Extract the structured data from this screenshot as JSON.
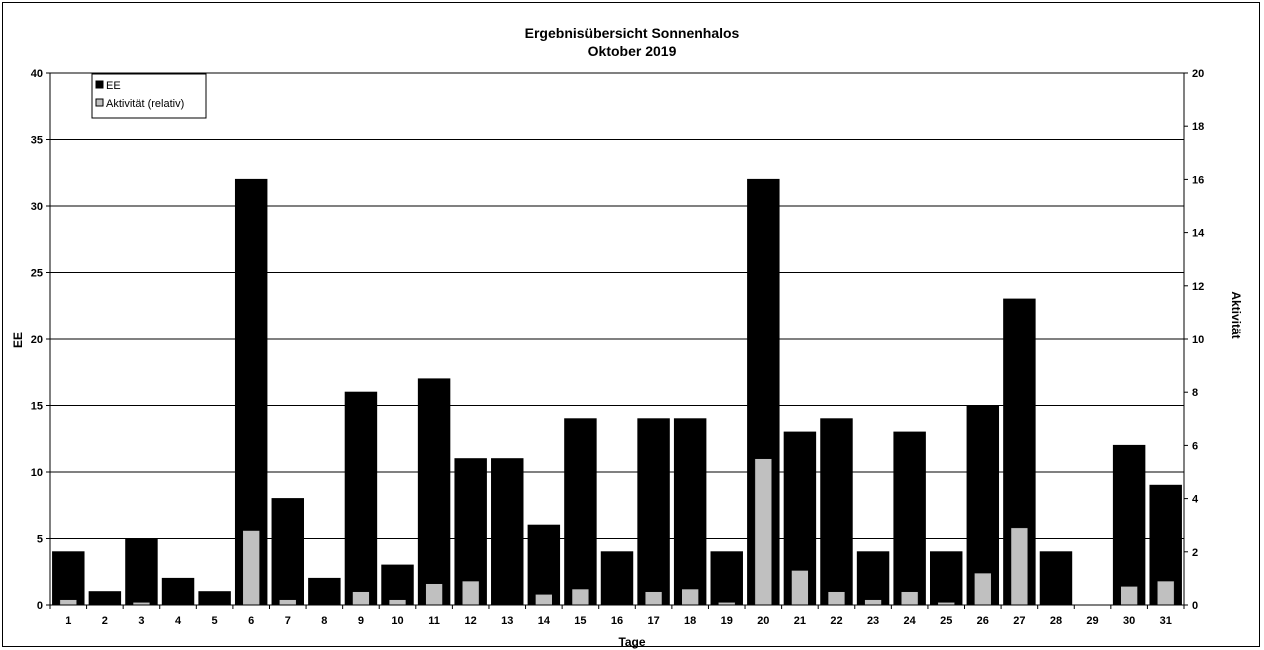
{
  "chart_data": {
    "type": "bar",
    "title": "Ergebnisübersicht Sonnenhalos",
    "subtitle": "Oktober  2019",
    "xlabel": "Tage",
    "ylabel_left": "EE",
    "ylabel_right": "Aktivität",
    "ylim_left": [
      0,
      40
    ],
    "ylim_right": [
      0,
      20
    ],
    "yticks_left": [
      "0",
      "5",
      "10",
      "15",
      "20",
      "25",
      "30",
      "35",
      "40"
    ],
    "yticks_right": [
      "0",
      "2",
      "4",
      "6",
      "8",
      "10",
      "12",
      "14",
      "16",
      "18",
      "20"
    ],
    "grid": true,
    "legend_position": "top-left",
    "categories": [
      "1",
      "2",
      "3",
      "4",
      "5",
      "6",
      "7",
      "8",
      "9",
      "10",
      "11",
      "12",
      "13",
      "14",
      "15",
      "16",
      "17",
      "18",
      "19",
      "20",
      "21",
      "22",
      "23",
      "24",
      "25",
      "26",
      "27",
      "28",
      "29",
      "30",
      "31"
    ],
    "series": [
      {
        "name": "EE",
        "axis": "left",
        "color": "#000000",
        "values": [
          4,
          1,
          5,
          2,
          1,
          32,
          8,
          2,
          16,
          3,
          17,
          11,
          11,
          6,
          14,
          4,
          14,
          14,
          4,
          32,
          13,
          14,
          4,
          13,
          4,
          15,
          23,
          4,
          0,
          12,
          9
        ]
      },
      {
        "name": "Aktivität (relativ)",
        "axis": "right",
        "color": "#c0c0c0",
        "values": [
          0.2,
          0,
          0.1,
          0,
          0,
          2.8,
          0.2,
          0,
          0.5,
          0.2,
          0.8,
          0.9,
          0,
          0.4,
          0.6,
          0,
          0.5,
          0.6,
          0.1,
          5.5,
          1.3,
          0.5,
          0.2,
          0.5,
          0.1,
          1.2,
          2.9,
          0,
          0,
          0.7,
          0.9
        ]
      }
    ]
  }
}
